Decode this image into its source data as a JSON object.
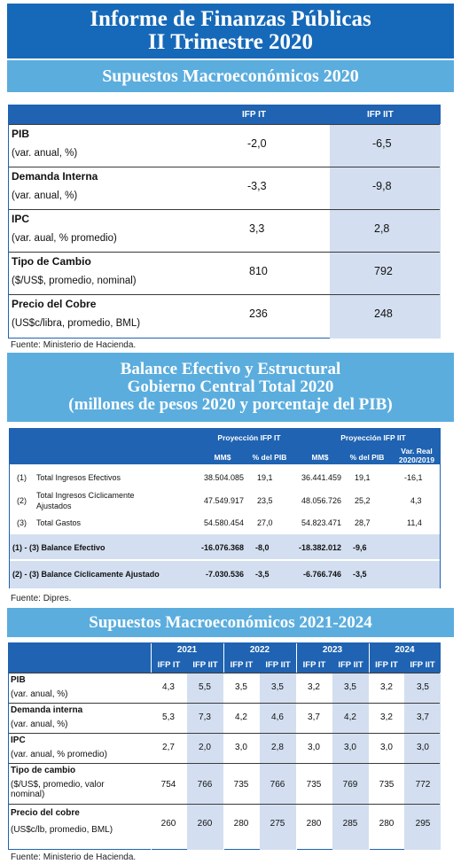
{
  "title": {
    "line1": "Informe de Finanzas Públicas",
    "line2": "II Trimestre 2020"
  },
  "section1": {
    "heading": "Supuestos Macroeconómicos 2020",
    "columns": [
      "IFP IT",
      "IFP IIT"
    ],
    "rows": [
      {
        "label": "PIB",
        "sub": "(var. anual, %)",
        "v1": "-2,0",
        "v2": "-6,5"
      },
      {
        "label": "Demanda Interna",
        "sub": "(var. anual, %)",
        "v1": "-3,3",
        "v2": "-9,8"
      },
      {
        "label": "IPC",
        "sub": "(var. aual, % promedio)",
        "v1": "3,3",
        "v2": "2,8"
      },
      {
        "label": "Tipo de Cambio",
        "sub": "($/US$, promedio, nominal)",
        "v1": "810",
        "v2": "792"
      },
      {
        "label": "Precio del Cobre",
        "sub": "(US$c/libra, promedio, BML)",
        "v1": "236",
        "v2": "248"
      }
    ],
    "source": "Fuente: Ministerio de Hacienda."
  },
  "section2": {
    "heading": {
      "line1": "Balance Efectivo y Estructural",
      "line2": "Gobierno Central Total 2020",
      "line3": "(millones de pesos 2020 y porcentaje del PIB)"
    },
    "group1": "Proyección IFP IT",
    "group2": "Proyección IFP IIT",
    "var_real": {
      "line1": "Var. Real",
      "line2": "2020/2019"
    },
    "sub_headers": [
      "MM$",
      "% del PIB",
      "MM$",
      "% del PIB"
    ],
    "rows": [
      {
        "id": "(1)",
        "label": "Total Ingresos Efectivos",
        "mm1": "38.504.085",
        "p1": "19,1",
        "mm2": "36.441.459",
        "p2": "19,1",
        "var": "-16,1"
      },
      {
        "id": "(2)",
        "label": "Total Ingresos Cíclicamente Ajustados",
        "mm1": "47.549.917",
        "p1": "23,5",
        "mm2": "48.056.726",
        "p2": "25,2",
        "var": "4,3"
      },
      {
        "id": "(3)",
        "label": "Total Gastos",
        "mm1": "54.580.454",
        "p1": "27,0",
        "mm2": "54.823.471",
        "p2": "28,7",
        "var": "11,4"
      }
    ],
    "balances": [
      {
        "label": "(1) - (3) Balance Efectivo",
        "mm1": "-16.076.368",
        "p1": "-8,0",
        "mm2": "-18.382.012",
        "p2": "-9,6"
      },
      {
        "label": "(2) - (3) Balance Cíclicamente Ajustado",
        "mm1": "-7.030.536",
        "p1": "-3,5",
        "mm2": "-6.766.746",
        "p2": "-3,5"
      }
    ],
    "source": "Fuente: Dipres."
  },
  "section3": {
    "heading": "Supuestos Macroeconómicos 2021-2024",
    "years": [
      "2021",
      "2022",
      "2023",
      "2024"
    ],
    "sub_headers": [
      "IFP IT",
      "IFP IIT"
    ],
    "rows": [
      {
        "label": "PIB",
        "sub1": "(var. anual, %)",
        "sub2": "",
        "values": [
          "4,3",
          "5,5",
          "3,5",
          "3,5",
          "3,2",
          "3,5",
          "3,2",
          "3,5"
        ]
      },
      {
        "label": "Demanda interna",
        "sub1": "(var. anual, %)",
        "sub2": "",
        "values": [
          "5,3",
          "7,3",
          "4,2",
          "4,6",
          "3,7",
          "4,2",
          "3,2",
          "3,7"
        ]
      },
      {
        "label": "IPC",
        "sub1": "(var. anual, % promedio)",
        "sub2": "",
        "values": [
          "2,7",
          "2,0",
          "3,0",
          "2,8",
          "3,0",
          "3,0",
          "3,0",
          "3,0"
        ]
      },
      {
        "label": "Tipo de cambio",
        "sub1": "($/US$, promedio, valor",
        "sub2": "nominal)",
        "values": [
          "754",
          "766",
          "735",
          "766",
          "735",
          "769",
          "735",
          "772"
        ]
      },
      {
        "label": "Precio del cobre",
        "sub1": "(US$c/lb, promedio, BML)",
        "sub2": "",
        "values": [
          "260",
          "260",
          "280",
          "275",
          "280",
          "285",
          "280",
          "295"
        ]
      }
    ],
    "source": "Fuente: Ministerio de Hacienda."
  }
}
